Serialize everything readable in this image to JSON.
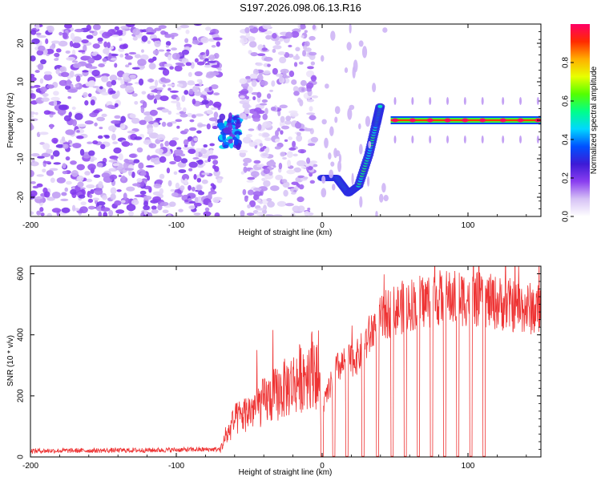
{
  "title": "S197.2026.098.06.13.R16",
  "chart_data": [
    {
      "type": "heatmap",
      "name": "spectrogram",
      "xlabel": "Height of straight line (km)",
      "ylabel": "Frequency (Hz)",
      "xlim": [
        -200,
        150
      ],
      "ylim": [
        -25,
        25
      ],
      "xticks": [
        "-200",
        "-100",
        "0",
        "100"
      ],
      "xtick_values": [
        -200,
        -100,
        0,
        100
      ],
      "yticks": [
        "20",
        "10",
        "0",
        "-10",
        "-20"
      ],
      "ytick_values": [
        20,
        10,
        0,
        -10,
        -20
      ],
      "colorbar": {
        "label": "Normalized spectral amplitude",
        "range": [
          0.0,
          1.0
        ],
        "ticks": [
          "0.0",
          "0.2",
          "0.4",
          "0.6",
          "0.8"
        ],
        "tick_values": [
          0.0,
          0.2,
          0.4,
          0.6,
          0.8
        ],
        "colormap": [
          "#ffffff",
          "#d6c2f5",
          "#8a3ef0",
          "#3d1bd6",
          "#0050ff",
          "#00d7ff",
          "#00ff8a",
          "#55ff00",
          "#e8ff00",
          "#ffae00",
          "#ff2a00",
          "#ff0066"
        ]
      },
      "regions": [
        {
          "x": [
            -200,
            -70
          ],
          "desc": "noise",
          "level": 0.15
        },
        {
          "x": [
            -70,
            -57
          ],
          "desc": "return",
          "y_center": -3,
          "level": 0.35
        },
        {
          "x": [
            -55,
            -5
          ],
          "desc": "noise",
          "level": 0.12
        },
        {
          "x": [
            0,
            45
          ],
          "desc": "chirp",
          "level": 0.45
        },
        {
          "x": [
            47,
            150
          ],
          "desc": "carrier",
          "y_center": 0,
          "level": 0.9
        }
      ],
      "chirp_track": [
        {
          "x": 0,
          "y": -15
        },
        {
          "x": 10,
          "y": -15
        },
        {
          "x": 18,
          "y": -19
        },
        {
          "x": 25,
          "y": -17
        },
        {
          "x": 32,
          "y": -9
        },
        {
          "x": 37,
          "y": -1
        },
        {
          "x": 40,
          "y": 4
        }
      ],
      "carrier_peaks_x": [
        50,
        62,
        74,
        86,
        98,
        110,
        124,
        136,
        148
      ]
    },
    {
      "type": "line",
      "name": "snr",
      "xlabel": "Height of straight line (km)",
      "ylabel": "SNR (10 * v/v)",
      "xlim": [
        -200,
        150
      ],
      "ylim": [
        0,
        625
      ],
      "xticks": [
        "-200",
        "-100",
        "0",
        "100"
      ],
      "xtick_values": [
        -200,
        -100,
        0,
        100
      ],
      "yticks": [
        "0",
        "200",
        "400",
        "600"
      ],
      "ytick_values": [
        0,
        200,
        400,
        600
      ],
      "color": "#ee3333",
      "envelope": [
        {
          "x": -200,
          "y": 20
        },
        {
          "x": -120,
          "y": 22
        },
        {
          "x": -70,
          "y": 25
        },
        {
          "x": -60,
          "y": 120
        },
        {
          "x": -40,
          "y": 180
        },
        {
          "x": -20,
          "y": 240
        },
        {
          "x": -5,
          "y": 300
        },
        {
          "x": 0,
          "y": 160
        },
        {
          "x": 10,
          "y": 290
        },
        {
          "x": 25,
          "y": 330
        },
        {
          "x": 35,
          "y": 420
        },
        {
          "x": 45,
          "y": 470
        },
        {
          "x": 60,
          "y": 500
        },
        {
          "x": 80,
          "y": 520
        },
        {
          "x": 100,
          "y": 520
        },
        {
          "x": 120,
          "y": 505
        },
        {
          "x": 150,
          "y": 480
        }
      ],
      "dropouts_x": [
        0,
        8,
        17,
        28,
        38,
        48,
        57,
        66,
        75,
        84,
        93,
        102,
        111
      ]
    }
  ]
}
